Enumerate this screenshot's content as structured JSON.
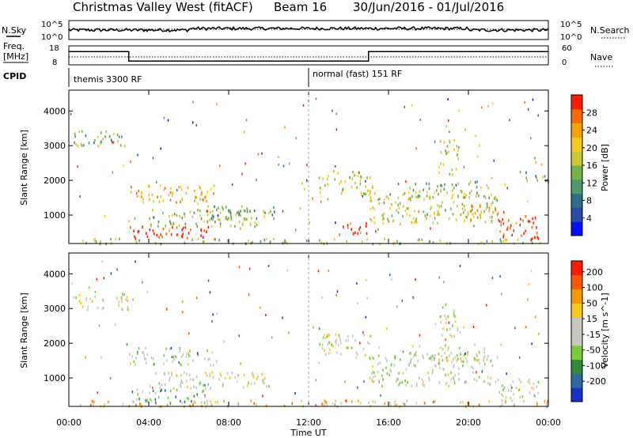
{
  "header": {
    "station": "Christmas Valley West (fitACF)",
    "beam": "Beam 16",
    "dates": "30/Jun/2016 - 01/Jul/2016"
  },
  "top_panels": {
    "nsky_label": "N.Sky",
    "nsky_ticks": [
      "10^5",
      "10^0"
    ],
    "nsearch_label": "N.Search",
    "nsearch_ticks": [
      "10^5",
      "10^0"
    ],
    "freq_label_1": "Freq.",
    "freq_label_2": "[MHz]",
    "freq_ticks": [
      "18",
      "8"
    ],
    "nave_label": "Nave",
    "nave_ticks": [
      "60",
      "0"
    ],
    "cpid_label": "CPID",
    "cpid_segments": [
      {
        "label": "themis 3300 RF",
        "start_hour": 0
      },
      {
        "label": "normal (fast) 151 RF",
        "start_hour": 12
      }
    ],
    "freq_steps": [
      {
        "hour": 0,
        "value": 15
      },
      {
        "hour": 3.0,
        "value": 10
      },
      {
        "hour": 15.0,
        "value": 15
      },
      {
        "hour": 24,
        "value": 15
      }
    ]
  },
  "axes": {
    "ylabel": "Slant Range [km]",
    "yticks": [
      "1000",
      "2000",
      "3000",
      "4000"
    ],
    "xlabel": "Time UT",
    "xticks": [
      "00:00",
      "04:00",
      "08:00",
      "12:00",
      "16:00",
      "20:00",
      "00:00"
    ]
  },
  "chart_data": [
    {
      "type": "heatmap",
      "name": "power",
      "xlabel": "Time UT",
      "ylabel": "Slant Range [km]",
      "xlim_hours": [
        0,
        24
      ],
      "ylim": [
        180,
        4600
      ],
      "colorbar": {
        "label": "Power [dB]",
        "ticks": [
          "4",
          "8",
          "12",
          "16",
          "20",
          "24",
          "28"
        ],
        "colors": [
          "#0010ff",
          "#2a4aa8",
          "#2f6e8a",
          "#4f9a6a",
          "#72b34a",
          "#c8c830",
          "#f7c81f",
          "#f5a300",
          "#ff6a00",
          "#ff1a00"
        ]
      },
      "regions": [
        {
          "t0": 0.2,
          "t1": 3.0,
          "r0": 3000,
          "r1": 3450,
          "level": 0.45
        },
        {
          "t0": 3.0,
          "t1": 7.4,
          "r0": 1400,
          "r1": 1900,
          "level": 0.7
        },
        {
          "t0": 3.0,
          "t1": 7.0,
          "r0": 300,
          "r1": 700,
          "level": 0.95
        },
        {
          "t0": 4.0,
          "t1": 10.0,
          "r0": 700,
          "r1": 1200,
          "level": 0.5
        },
        {
          "t0": 6.0,
          "t1": 10.5,
          "r0": 900,
          "r1": 1300,
          "level": 0.4
        },
        {
          "t0": 0.5,
          "t1": 24.0,
          "r0": 200,
          "r1": 350,
          "level": 0.5
        },
        {
          "t0": 12.5,
          "t1": 15.2,
          "r0": 1600,
          "r1": 2300,
          "level": 0.55
        },
        {
          "t0": 13.5,
          "t1": 15.0,
          "r0": 400,
          "r1": 800,
          "level": 0.95
        },
        {
          "t0": 15.0,
          "t1": 21.5,
          "r0": 800,
          "r1": 1700,
          "level": 0.55
        },
        {
          "t0": 17.0,
          "t1": 21.0,
          "r0": 1500,
          "r1": 2000,
          "level": 0.45
        },
        {
          "t0": 18.5,
          "t1": 19.5,
          "r0": 2200,
          "r1": 3200,
          "level": 0.6
        },
        {
          "t0": 21.5,
          "t1": 23.5,
          "r0": 300,
          "r1": 1000,
          "level": 0.95
        },
        {
          "t0": 20.0,
          "t1": 21.5,
          "r0": 900,
          "r1": 1300,
          "level": 0.75
        },
        {
          "t0": 22.5,
          "t1": 24.0,
          "r0": 2000,
          "r1": 2300,
          "level": 0.4
        }
      ]
    },
    {
      "type": "heatmap",
      "name": "velocity",
      "xlabel": "Time UT",
      "ylabel": "Slant Range [km]",
      "xlim_hours": [
        0,
        24
      ],
      "ylim": [
        180,
        4600
      ],
      "colorbar": {
        "label": "Velocity [m s^-1]",
        "ticks": [
          "200",
          "100",
          "50",
          "15",
          "-15",
          "-50",
          "-100",
          "-200"
        ],
        "colors": [
          "#1a30c8",
          "#2e6aa0",
          "#2f8a3a",
          "#7acc3a",
          "#c8c8c0",
          "#c8c8c0",
          "#f7c81f",
          "#f59a00",
          "#ff5a00",
          "#ff1a00"
        ]
      },
      "regions": [
        {
          "t0": 0.2,
          "t1": 3.0,
          "r0": 3000,
          "r1": 3450,
          "level": 0.5
        },
        {
          "t0": 3.0,
          "t1": 7.4,
          "r0": 1400,
          "r1": 1900,
          "level": 0.45
        },
        {
          "t0": 3.0,
          "t1": 7.0,
          "r0": 300,
          "r1": 700,
          "level": 0.3
        },
        {
          "t0": 4.0,
          "t1": 10.0,
          "r0": 700,
          "r1": 1200,
          "level": 0.55
        },
        {
          "t0": 0.5,
          "t1": 24.0,
          "r0": 200,
          "r1": 380,
          "level": 0.68
        },
        {
          "t0": 12.5,
          "t1": 15.2,
          "r0": 1600,
          "r1": 2300,
          "level": 0.5
        },
        {
          "t0": 15.0,
          "t1": 21.5,
          "r0": 800,
          "r1": 1700,
          "level": 0.48
        },
        {
          "t0": 17.0,
          "t1": 21.0,
          "r0": 1500,
          "r1": 2000,
          "level": 0.5
        },
        {
          "t0": 18.5,
          "t1": 19.5,
          "r0": 2200,
          "r1": 3200,
          "level": 0.5
        },
        {
          "t0": 21.5,
          "t1": 23.5,
          "r0": 300,
          "r1": 1000,
          "level": 0.5
        }
      ]
    }
  ]
}
